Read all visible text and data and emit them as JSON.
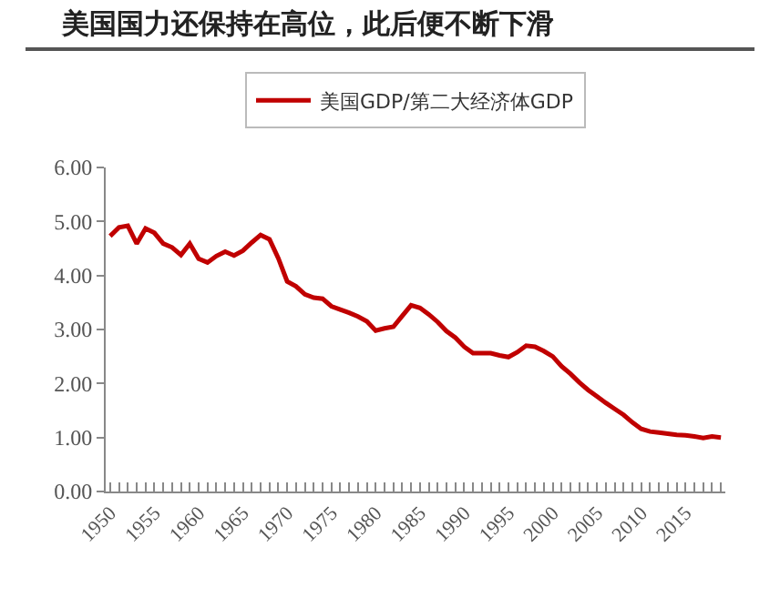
{
  "chart_data": {
    "type": "line",
    "title": "美国国力还保持在高位，此后便不断下滑",
    "x": [
      1950,
      1951,
      1952,
      1953,
      1954,
      1955,
      1956,
      1957,
      1958,
      1959,
      1960,
      1961,
      1962,
      1963,
      1964,
      1965,
      1966,
      1967,
      1968,
      1969,
      1970,
      1971,
      1972,
      1973,
      1974,
      1975,
      1976,
      1977,
      1978,
      1979,
      1980,
      1981,
      1982,
      1983,
      1984,
      1985,
      1986,
      1987,
      1988,
      1989,
      1990,
      1991,
      1992,
      1993,
      1994,
      1995,
      1996,
      1997,
      1998,
      1999,
      2000,
      2001,
      2002,
      2003,
      2004,
      2005,
      2006,
      2007,
      2008,
      2009,
      2010,
      2011,
      2012,
      2013,
      2014,
      2015,
      2016,
      2017,
      2018,
      2019
    ],
    "series": [
      {
        "name": "美国GDP/第二大经济体GDP",
        "color": "#c00000",
        "values": [
          4.73,
          4.89,
          4.92,
          4.59,
          4.87,
          4.79,
          4.59,
          4.52,
          4.38,
          4.59,
          4.31,
          4.24,
          4.36,
          4.44,
          4.37,
          4.46,
          4.61,
          4.75,
          4.67,
          4.32,
          3.89,
          3.8,
          3.65,
          3.59,
          3.57,
          3.43,
          3.37,
          3.31,
          3.24,
          3.15,
          2.98,
          3.02,
          3.05,
          3.25,
          3.45,
          3.4,
          3.28,
          3.14,
          2.97,
          2.85,
          2.68,
          2.56,
          2.56,
          2.56,
          2.52,
          2.49,
          2.58,
          2.7,
          2.68,
          2.6,
          2.5,
          2.32,
          2.18,
          2.02,
          1.88,
          1.76,
          1.64,
          1.53,
          1.42,
          1.28,
          1.16,
          1.11,
          1.09,
          1.07,
          1.05,
          1.04,
          1.02,
          0.99,
          1.02,
          1.0
        ]
      }
    ],
    "xlim": [
      1949.5,
      2019.5
    ],
    "xticks": [
      1950,
      1955,
      1960,
      1965,
      1970,
      1975,
      1980,
      1985,
      1990,
      1995,
      2000,
      2005,
      2010,
      2015
    ],
    "ylim": [
      0,
      6
    ],
    "yticks": [
      {
        "value": 0,
        "label": "0.00"
      },
      {
        "value": 1,
        "label": "1.00"
      },
      {
        "value": 2,
        "label": "2.00"
      },
      {
        "value": 3,
        "label": "3.00"
      },
      {
        "value": 4,
        "label": "4.00"
      },
      {
        "value": 5,
        "label": "5.00"
      },
      {
        "value": 6,
        "label": "6.00"
      }
    ],
    "grid": false,
    "legend": "top",
    "marker": "none",
    "line_style": "solid"
  }
}
